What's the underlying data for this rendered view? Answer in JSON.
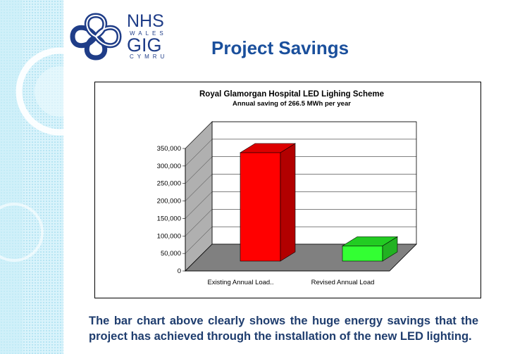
{
  "header": {
    "org_line1": "NHS",
    "org_line2": "WALES",
    "org_line3": "GIG",
    "org_line4": "CYMRU",
    "slide_title": "Project Savings"
  },
  "colors": {
    "title": "#1a4f9c",
    "logo": "#1f3d88",
    "existing_bar": "#ff0000",
    "revised_bar": "#33ff33",
    "floor": "#808080",
    "wall": "#b0b0b0"
  },
  "chart_data": {
    "type": "bar",
    "title": "Royal Glamorgan Hospital LED Lighing Scheme",
    "subtitle": "Annual saving of 266.5 MWh per year",
    "categories": [
      "Existing Annual Load..",
      "Revised Annual Load"
    ],
    "values": [
      310000,
      43500
    ],
    "ylim": [
      0,
      350000
    ],
    "yticks": [
      "0",
      "50,000",
      "100,000",
      "150,000",
      "200,000",
      "250,000",
      "300,000",
      "350,000"
    ],
    "ytick_values": [
      0,
      50000,
      100000,
      150000,
      200000,
      250000,
      300000,
      350000
    ],
    "style": "3d",
    "grid": true
  },
  "caption": "The bar chart above clearly shows the huge energy savings that the project has achieved through the installation of the new LED lighting."
}
